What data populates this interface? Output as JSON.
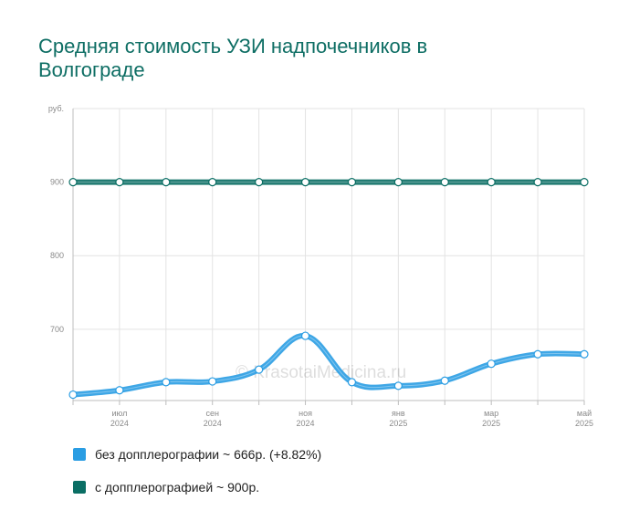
{
  "chart_data": {
    "type": "line",
    "title": "Средняя стоимость УЗИ надпочечников в Волгограде",
    "ylabel": "руб.",
    "ylim": [
      603,
      1000
    ],
    "yticks": [
      700,
      800,
      900
    ],
    "grid": true,
    "x_points": 12,
    "x_ticks": [
      {
        "index": 1,
        "month": "июл",
        "year": "2024"
      },
      {
        "index": 3,
        "month": "сен",
        "year": "2024"
      },
      {
        "index": 5,
        "month": "ноя",
        "year": "2024"
      },
      {
        "index": 7,
        "month": "янв",
        "year": "2025"
      },
      {
        "index": 9,
        "month": "мар",
        "year": "2025"
      },
      {
        "index": 11,
        "month": "май",
        "year": "2025"
      }
    ],
    "series": [
      {
        "name": "без допплерографии ~ 666р. (+8.82%)",
        "color": "#2a9de3",
        "values": [
          611,
          617,
          628,
          629,
          645,
          691,
          628,
          623,
          630,
          653,
          666,
          666
        ]
      },
      {
        "name": "с допплерографией ~ 900р.",
        "color": "#0a6e64",
        "values": [
          900,
          900,
          900,
          900,
          900,
          900,
          900,
          900,
          900,
          900,
          900,
          900
        ]
      }
    ],
    "watermark": "© KrasotaiMedicina.ru",
    "legend_position": "bottom"
  }
}
